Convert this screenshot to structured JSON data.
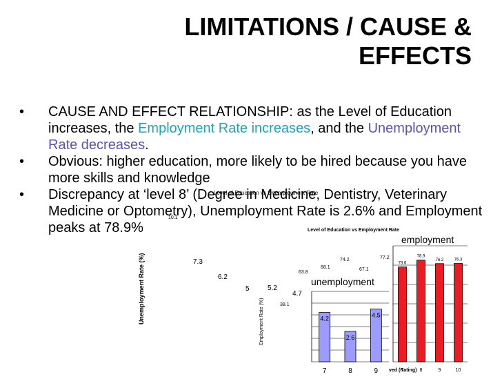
{
  "slide": {
    "title": "LIMITATIONS / CAUSE & EFFECTS",
    "bullets": [
      {
        "parts": [
          {
            "text": "CAUSE AND EFFECT RELATIONSHIP: as the Level of Education increases, the ",
            "style": "normal"
          },
          {
            "text": "Employment Rate increases",
            "style": "teal"
          },
          {
            "text": ", and the ",
            "style": "normal"
          },
          {
            "text": "Unemployment Rate decreases",
            "style": "purple"
          },
          {
            "text": ".",
            "style": "normal"
          }
        ]
      },
      {
        "parts": [
          {
            "text": "Obvious: higher education, more likely to be hired because you have more skills and knowledge",
            "style": "normal"
          }
        ]
      },
      {
        "parts": [
          {
            "text": "Discrepancy at ‘level 8’ (Degree in Medicine, Dentistry, Veterinary Medicine or Optometry), Unemployment Rate is 2.6% and Employment peaks at 78.9%",
            "style": "normal"
          }
        ]
      }
    ],
    "bullet_symbol": "•",
    "colors": {
      "teal": "#1aa6b8",
      "purple": "#5b52b5",
      "employment_bar": "#ee1b24",
      "unemployment_bar": "#9c9cff"
    }
  },
  "background_chart": {
    "title": "Level of Education vs Unemployment Rate",
    "ylabel": "Unemployment Rate (%)",
    "labels": [
      "7.3",
      "6.2",
      "5",
      "5.2",
      "4.7",
      "10.1"
    ]
  },
  "middle_chart": {
    "title": "Level of Education vs Employment Rate",
    "ylabel": "Employment Rate (%)",
    "labels": [
      "63.8",
      "68.1",
      "74.2",
      "67.1",
      "77.2",
      "38.1"
    ]
  },
  "chart_data": [
    {
      "type": "bar",
      "title": "unemployment",
      "categories": [
        "7",
        "8",
        "9"
      ],
      "values": [
        4.2,
        2.6,
        4.5
      ],
      "ylim": [
        0,
        6
      ],
      "grid": true
    },
    {
      "type": "bar",
      "title": "employment",
      "xlabel": "ved (Rating)",
      "categories": [
        "7",
        "8",
        "9",
        "10"
      ],
      "values": [
        73.6,
        78.9,
        76.2,
        76.3
      ],
      "ylim": [
        0,
        90
      ],
      "grid": true
    }
  ]
}
